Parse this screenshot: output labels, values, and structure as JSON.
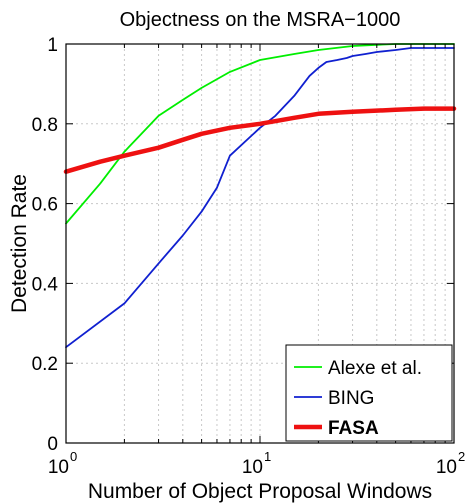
{
  "chart_data": {
    "type": "line",
    "title": "Objectness on the MSRA−1000",
    "xlabel": "Number of Object Proposal Windows",
    "ylabel": "Detection Rate",
    "xscale": "log",
    "xlim": [
      1,
      100
    ],
    "ylim": [
      0,
      1
    ],
    "x_ticks": [
      {
        "value": 1,
        "base": "10",
        "exp": "0"
      },
      {
        "value": 10,
        "base": "10",
        "exp": "1"
      },
      {
        "value": 100,
        "base": "10",
        "exp": "2"
      }
    ],
    "y_ticks": [
      {
        "value": 0,
        "label": "0"
      },
      {
        "value": 0.2,
        "label": "0.2"
      },
      {
        "value": 0.4,
        "label": "0.4"
      },
      {
        "value": 0.6,
        "label": "0.6"
      },
      {
        "value": 0.8,
        "label": "0.8"
      },
      {
        "value": 1,
        "label": "1"
      }
    ],
    "grid": true,
    "legend_position": "bottom-right",
    "series": [
      {
        "name": "Alexe et al.",
        "color": "#00ee00",
        "line_width": "thin",
        "x": [
          1,
          1.5,
          2,
          3,
          4,
          5,
          7,
          10,
          15,
          20,
          30,
          40,
          50,
          70,
          100
        ],
        "y": [
          0.55,
          0.65,
          0.73,
          0.82,
          0.86,
          0.89,
          0.93,
          0.96,
          0.975,
          0.985,
          0.995,
          0.998,
          1.0,
          1.0,
          1.0
        ]
      },
      {
        "name": "BING",
        "color": "#1020d0",
        "line_width": "thin",
        "x": [
          1,
          2,
          3,
          4,
          5,
          6,
          7,
          10,
          12,
          15,
          18,
          20,
          25,
          30,
          40,
          50,
          70,
          100
        ],
        "y": [
          0.24,
          0.35,
          0.45,
          0.52,
          0.58,
          0.64,
          0.72,
          0.79,
          0.82,
          0.87,
          0.92,
          0.94,
          0.96,
          0.97,
          0.98,
          0.985,
          0.99,
          0.99
        ],
        "x_dense": [
          18,
          20,
          22,
          25,
          28,
          30,
          35,
          40,
          50,
          60,
          70,
          100
        ],
        "y_dense": [
          0.92,
          0.94,
          0.955,
          0.96,
          0.965,
          0.97,
          0.975,
          0.98,
          0.985,
          0.99,
          0.99,
          0.99
        ]
      },
      {
        "name": "FASA",
        "color": "#ee1111",
        "line_width": "thick",
        "x": [
          1,
          1.5,
          2,
          3,
          4,
          5,
          7,
          10,
          15,
          20,
          30,
          50,
          70,
          100
        ],
        "y": [
          0.68,
          0.705,
          0.72,
          0.74,
          0.76,
          0.775,
          0.79,
          0.8,
          0.815,
          0.825,
          0.83,
          0.835,
          0.838,
          0.838
        ]
      }
    ]
  }
}
